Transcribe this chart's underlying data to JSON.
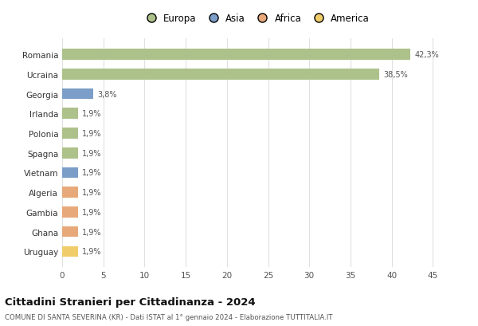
{
  "countries": [
    "Romania",
    "Ucraina",
    "Georgia",
    "Irlanda",
    "Polonia",
    "Spagna",
    "Vietnam",
    "Algeria",
    "Gambia",
    "Ghana",
    "Uruguay"
  ],
  "values": [
    42.3,
    38.5,
    3.8,
    1.9,
    1.9,
    1.9,
    1.9,
    1.9,
    1.9,
    1.9,
    1.9
  ],
  "labels": [
    "42,3%",
    "38,5%",
    "3,8%",
    "1,9%",
    "1,9%",
    "1,9%",
    "1,9%",
    "1,9%",
    "1,9%",
    "1,9%",
    "1,9%"
  ],
  "bar_colors": [
    "#adc18a",
    "#adc18a",
    "#7b9ec8",
    "#adc18a",
    "#adc18a",
    "#adc18a",
    "#7b9ec8",
    "#e8a97a",
    "#e8a97a",
    "#e8a97a",
    "#f0cc6a"
  ],
  "legend_labels": [
    "Europa",
    "Asia",
    "Africa",
    "America"
  ],
  "legend_colors": [
    "#adc18a",
    "#7b9ec8",
    "#e8a97a",
    "#f0cc6a"
  ],
  "title": "Cittadini Stranieri per Cittadinanza - 2024",
  "subtitle": "COMUNE DI SANTA SEVERINA (KR) - Dati ISTAT al 1° gennaio 2024 - Elaborazione TUTTITALIA.IT",
  "xlim": [
    0,
    47
  ],
  "xticks": [
    0,
    5,
    10,
    15,
    20,
    25,
    30,
    35,
    40,
    45
  ],
  "bg_color": "#ffffff",
  "grid_color": "#e0e0e0"
}
